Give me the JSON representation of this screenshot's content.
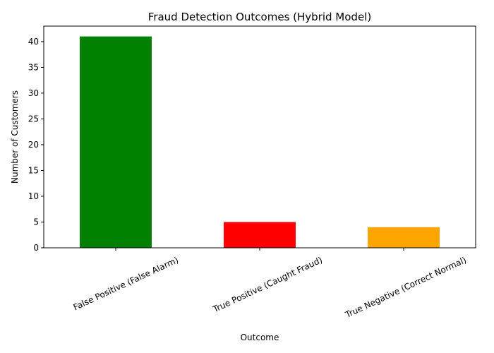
{
  "colors": {
    "background": "#ffffff",
    "axis": "#000000",
    "text": "#000000"
  },
  "chart_data": {
    "type": "bar",
    "title": "Fraud Detection Outcomes (Hybrid Model)",
    "xlabel": "Outcome",
    "ylabel": "Number of Customers",
    "categories": [
      "False Positive (False Alarm)",
      "True Positive (Caught Fraud)",
      "True Negative (Correct Normal)"
    ],
    "values": [
      41,
      5,
      4
    ],
    "bar_colors": [
      "#008000",
      "#ff0000",
      "#ffa500"
    ],
    "ylim": [
      0,
      43
    ],
    "yticks": [
      0,
      5,
      10,
      15,
      20,
      25,
      30,
      35,
      40
    ],
    "xtick_rotation_deg": -25,
    "grid": false,
    "legend": "none"
  }
}
